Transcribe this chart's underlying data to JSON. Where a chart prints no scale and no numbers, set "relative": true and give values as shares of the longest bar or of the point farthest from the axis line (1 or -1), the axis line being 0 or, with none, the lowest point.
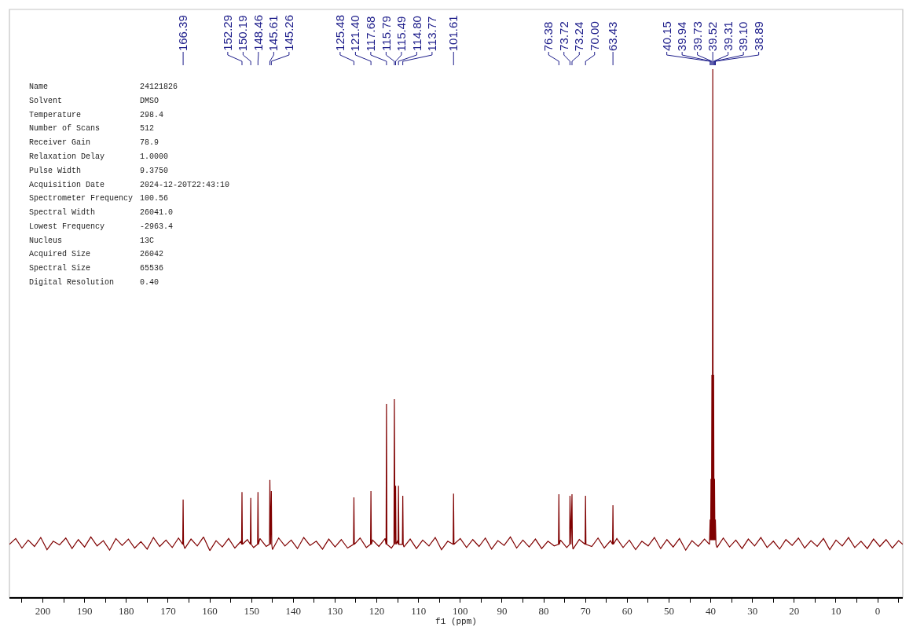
{
  "chart_data": {
    "type": "line",
    "relative": true,
    "xlabel": "f1 (ppm)",
    "tick_labels": "x",
    "xlim": [
      208,
      -6
    ],
    "xticks": [
      {
        "value": 205,
        "label": null
      },
      200,
      {
        "value": 195,
        "label": null
      },
      190,
      {
        "value": 185,
        "label": null
      },
      180,
      {
        "value": 175,
        "label": null
      },
      170,
      {
        "value": 165,
        "label": null
      },
      160,
      {
        "value": 155,
        "label": null
      },
      150,
      {
        "value": 145,
        "label": null
      },
      140,
      {
        "value": 135,
        "label": null
      },
      130,
      {
        "value": 125,
        "label": null
      },
      120,
      {
        "value": 115,
        "label": null
      },
      110,
      {
        "value": 105,
        "label": null
      },
      100,
      {
        "value": 95,
        "label": null
      },
      90,
      {
        "value": 85,
        "label": null
      },
      80,
      {
        "value": 75,
        "label": null
      },
      70,
      {
        "value": 65,
        "label": null
      },
      60,
      {
        "value": 55,
        "label": null
      },
      50,
      {
        "value": 45,
        "label": null
      },
      40,
      {
        "value": 35,
        "label": null
      },
      30,
      {
        "value": 25,
        "label": null
      },
      20,
      {
        "value": 15,
        "label": null
      },
      10,
      {
        "value": 5,
        "label": null
      },
      0,
      {
        "value": -5,
        "label": null
      }
    ],
    "series": [
      {
        "color": "#7f0000",
        "x": [
          208,
          206.5,
          205,
          203.5,
          202,
          200.5,
          199,
          197.5,
          196,
          194.5,
          193,
          191.5,
          190,
          188.5,
          187,
          185.5,
          184,
          182.5,
          181,
          179.5,
          178,
          176.5,
          175,
          173.5,
          172,
          170.5,
          169,
          167.5,
          166.49,
          166.39,
          166.29,
          166,
          164.5,
          163,
          161.5,
          160,
          158.5,
          157,
          155.5,
          154,
          152.5,
          152.39,
          152.29,
          152.19,
          151,
          150.29,
          150.19,
          150.09,
          149.5,
          148.56,
          148.46,
          148.36,
          148,
          146.5,
          145.71,
          145.61,
          145.44,
          145.26,
          145.16,
          145,
          143.5,
          142,
          140.5,
          139,
          137.5,
          136,
          134.5,
          133,
          131.5,
          130,
          128.5,
          127,
          125.58,
          125.48,
          125.38,
          124,
          122.5,
          121.5,
          121.4,
          121.3,
          121,
          119.5,
          118,
          117.78,
          117.68,
          117.58,
          116.5,
          115.89,
          115.79,
          115.64,
          115.49,
          115.39,
          115,
          114.9,
          114.8,
          114.7,
          113.87,
          113.77,
          113.67,
          113.5,
          112,
          110.5,
          109,
          107.5,
          106,
          104.5,
          103,
          101.71,
          101.61,
          101.51,
          100,
          98.5,
          97,
          95.5,
          94,
          92.5,
          91,
          89.5,
          88,
          86.5,
          85,
          83.5,
          82,
          80.5,
          79,
          77.5,
          76.48,
          76.38,
          76.28,
          76,
          74.5,
          73.82,
          73.72,
          73.48,
          73.24,
          73.14,
          73,
          71.5,
          70.1,
          70.0,
          69.9,
          68.5,
          67,
          65.5,
          64,
          63.53,
          63.43,
          63.33,
          62.5,
          61,
          59.5,
          58,
          56.5,
          55,
          53.5,
          52,
          50.5,
          49,
          47.5,
          46,
          44.5,
          43,
          41.5,
          40.3,
          40.15,
          40.045,
          39.94,
          39.835,
          39.73,
          39.625,
          39.52,
          39.415,
          39.31,
          39.205,
          39.1,
          38.995,
          38.89,
          38.74,
          38.5,
          37,
          35.5,
          34,
          32.5,
          31,
          29.5,
          28,
          26.5,
          25,
          23.5,
          22,
          20.5,
          19,
          17.5,
          16,
          14.5,
          13,
          11.5,
          10,
          8.5,
          7,
          5.5,
          4,
          2.5,
          1,
          -0.5,
          -2,
          -3.5,
          -5,
          -6
        ],
        "values": [
          0.1,
          0.111,
          0.093,
          0.108,
          0.096,
          0.113,
          0.09,
          0.106,
          0.099,
          0.112,
          0.092,
          0.109,
          0.095,
          0.114,
          0.097,
          0.107,
          0.089,
          0.111,
          0.098,
          0.11,
          0.093,
          0.105,
          0.091,
          0.113,
          0.096,
          0.108,
          0.094,
          0.112,
          0.1,
          0.185,
          0.1,
          0.092,
          0.11,
          0.097,
          0.114,
          0.088,
          0.107,
          0.095,
          0.111,
          0.093,
          0.106,
          0.1,
          0.199,
          0.1,
          0.109,
          0.1,
          0.188,
          0.1,
          0.094,
          0.1,
          0.199,
          0.1,
          0.111,
          0.096,
          0.1,
          0.222,
          0.1,
          0.201,
          0.1,
          0.09,
          0.112,
          0.097,
          0.108,
          0.092,
          0.113,
          0.098,
          0.106,
          0.091,
          0.11,
          0.095,
          0.109,
          0.093,
          0.1,
          0.189,
          0.1,
          0.112,
          0.094,
          0.1,
          0.201,
          0.1,
          0.108,
          0.096,
          0.111,
          0.1,
          0.366,
          0.1,
          0.093,
          0.1,
          0.375,
          0.1,
          0.211,
          0.1,
          0.107,
          0.1,
          0.211,
          0.1,
          0.1,
          0.192,
          0.1,
          0.095,
          0.11,
          0.092,
          0.108,
          0.097,
          0.113,
          0.09,
          0.106,
          0.1,
          0.196,
          0.1,
          0.111,
          0.094,
          0.109,
          0.096,
          0.112,
          0.091,
          0.107,
          0.098,
          0.114,
          0.093,
          0.108,
          0.095,
          0.11,
          0.092,
          0.106,
          0.097,
          0.1,
          0.195,
          0.1,
          0.108,
          0.094,
          0.1,
          0.192,
          0.1,
          0.195,
          0.1,
          0.091,
          0.109,
          0.1,
          0.192,
          0.1,
          0.096,
          0.112,
          0.093,
          0.107,
          0.1,
          0.174,
          0.1,
          0.111,
          0.094,
          0.108,
          0.09,
          0.106,
          0.097,
          0.113,
          0.092,
          0.109,
          0.095,
          0.111,
          0.089,
          0.107,
          0.096,
          0.11,
          0.1,
          0.147,
          0.108,
          0.224,
          0.108,
          0.421,
          0.108,
          1,
          0.108,
          0.421,
          0.108,
          0.224,
          0.108,
          0.147,
          0.1,
          0.094,
          0.112,
          0.095,
          0.108,
          0.092,
          0.11,
          0.097,
          0.113,
          0.094,
          0.106,
          0.091,
          0.109,
          0.098,
          0.112,
          0.093,
          0.107,
          0.096,
          0.111,
          0.09,
          0.108,
          0.097,
          0.113,
          0.094,
          0.106,
          0.092,
          0.11,
          0.096,
          0.109,
          0.093,
          0.107,
          0.1
        ]
      }
    ],
    "annotations": [
      {
        "text": "166.39",
        "x": 166.39
      },
      {
        "text": "152.29",
        "x": 152.29
      },
      {
        "text": "150.19",
        "x": 150.19
      },
      {
        "text": "148.46",
        "x": 148.46
      },
      {
        "text": "145.61",
        "x": 145.61
      },
      {
        "text": "145.26",
        "x": 145.26
      },
      {
        "text": "125.48",
        "x": 125.48
      },
      {
        "text": "121.40",
        "x": 121.4
      },
      {
        "text": "117.68",
        "x": 117.68
      },
      {
        "text": "115.79",
        "x": 115.79
      },
      {
        "text": "115.49",
        "x": 115.49
      },
      {
        "text": "114.80",
        "x": 114.8
      },
      {
        "text": "113.77",
        "x": 113.77
      },
      {
        "text": "101.61",
        "x": 101.61
      },
      {
        "text": "76.38",
        "x": 76.38
      },
      {
        "text": "73.72",
        "x": 73.72
      },
      {
        "text": "73.24",
        "x": 73.24
      },
      {
        "text": "70.00",
        "x": 70.0
      },
      {
        "text": "63.43",
        "x": 63.43
      },
      {
        "text": "40.15",
        "x": 40.15
      },
      {
        "text": "39.94",
        "x": 39.94
      },
      {
        "text": "39.73",
        "x": 39.73
      },
      {
        "text": "39.52",
        "x": 39.52
      },
      {
        "text": "39.31",
        "x": 39.31
      },
      {
        "text": "39.10",
        "x": 39.1
      },
      {
        "text": "38.89",
        "x": 38.89
      },
      "Name",
      "24121826",
      "Solvent",
      "DMSO",
      "Temperature",
      "298.4",
      "Number of Scans",
      "512",
      "Receiver Gain",
      "78.9",
      "Relaxation Delay",
      "1.0000",
      "Pulse Width",
      "9.3750",
      "Acquisition Date",
      "2024-12-20T22:43:10",
      "Spectrometer Frequency",
      "100.56",
      "Spectral Width",
      "26041.0",
      "Lowest Frequency",
      "-2963.4",
      "Nucleus",
      "13C",
      "Acquired Size",
      "26042",
      "Spectral Size",
      "65536",
      "Digital Resolution",
      "0.40"
    ]
  }
}
